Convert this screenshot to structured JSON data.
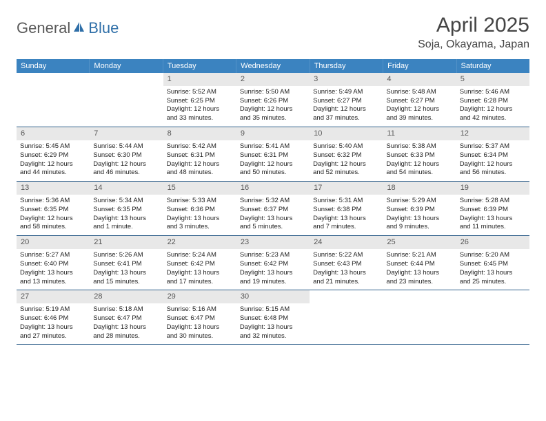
{
  "logo": {
    "general": "General",
    "blue": "Blue"
  },
  "title": "April 2025",
  "location": "Soja, Okayama, Japan",
  "colors": {
    "header_bg": "#3b83c0",
    "header_text": "#ffffff",
    "daynum_bg": "#e8e8e8",
    "row_border": "#2d5e8a",
    "logo_gray": "#5a5a5a",
    "logo_blue": "#2f6fa8"
  },
  "day_names": [
    "Sunday",
    "Monday",
    "Tuesday",
    "Wednesday",
    "Thursday",
    "Friday",
    "Saturday"
  ],
  "weeks": [
    [
      {
        "n": "",
        "empty": true
      },
      {
        "n": "",
        "empty": true
      },
      {
        "n": "1",
        "sr": "Sunrise: 5:52 AM",
        "ss": "Sunset: 6:25 PM",
        "dl1": "Daylight: 12 hours",
        "dl2": "and 33 minutes."
      },
      {
        "n": "2",
        "sr": "Sunrise: 5:50 AM",
        "ss": "Sunset: 6:26 PM",
        "dl1": "Daylight: 12 hours",
        "dl2": "and 35 minutes."
      },
      {
        "n": "3",
        "sr": "Sunrise: 5:49 AM",
        "ss": "Sunset: 6:27 PM",
        "dl1": "Daylight: 12 hours",
        "dl2": "and 37 minutes."
      },
      {
        "n": "4",
        "sr": "Sunrise: 5:48 AM",
        "ss": "Sunset: 6:27 PM",
        "dl1": "Daylight: 12 hours",
        "dl2": "and 39 minutes."
      },
      {
        "n": "5",
        "sr": "Sunrise: 5:46 AM",
        "ss": "Sunset: 6:28 PM",
        "dl1": "Daylight: 12 hours",
        "dl2": "and 42 minutes."
      }
    ],
    [
      {
        "n": "6",
        "sr": "Sunrise: 5:45 AM",
        "ss": "Sunset: 6:29 PM",
        "dl1": "Daylight: 12 hours",
        "dl2": "and 44 minutes."
      },
      {
        "n": "7",
        "sr": "Sunrise: 5:44 AM",
        "ss": "Sunset: 6:30 PM",
        "dl1": "Daylight: 12 hours",
        "dl2": "and 46 minutes."
      },
      {
        "n": "8",
        "sr": "Sunrise: 5:42 AM",
        "ss": "Sunset: 6:31 PM",
        "dl1": "Daylight: 12 hours",
        "dl2": "and 48 minutes."
      },
      {
        "n": "9",
        "sr": "Sunrise: 5:41 AM",
        "ss": "Sunset: 6:31 PM",
        "dl1": "Daylight: 12 hours",
        "dl2": "and 50 minutes."
      },
      {
        "n": "10",
        "sr": "Sunrise: 5:40 AM",
        "ss": "Sunset: 6:32 PM",
        "dl1": "Daylight: 12 hours",
        "dl2": "and 52 minutes."
      },
      {
        "n": "11",
        "sr": "Sunrise: 5:38 AM",
        "ss": "Sunset: 6:33 PM",
        "dl1": "Daylight: 12 hours",
        "dl2": "and 54 minutes."
      },
      {
        "n": "12",
        "sr": "Sunrise: 5:37 AM",
        "ss": "Sunset: 6:34 PM",
        "dl1": "Daylight: 12 hours",
        "dl2": "and 56 minutes."
      }
    ],
    [
      {
        "n": "13",
        "sr": "Sunrise: 5:36 AM",
        "ss": "Sunset: 6:35 PM",
        "dl1": "Daylight: 12 hours",
        "dl2": "and 58 minutes."
      },
      {
        "n": "14",
        "sr": "Sunrise: 5:34 AM",
        "ss": "Sunset: 6:35 PM",
        "dl1": "Daylight: 13 hours",
        "dl2": "and 1 minute."
      },
      {
        "n": "15",
        "sr": "Sunrise: 5:33 AM",
        "ss": "Sunset: 6:36 PM",
        "dl1": "Daylight: 13 hours",
        "dl2": "and 3 minutes."
      },
      {
        "n": "16",
        "sr": "Sunrise: 5:32 AM",
        "ss": "Sunset: 6:37 PM",
        "dl1": "Daylight: 13 hours",
        "dl2": "and 5 minutes."
      },
      {
        "n": "17",
        "sr": "Sunrise: 5:31 AM",
        "ss": "Sunset: 6:38 PM",
        "dl1": "Daylight: 13 hours",
        "dl2": "and 7 minutes."
      },
      {
        "n": "18",
        "sr": "Sunrise: 5:29 AM",
        "ss": "Sunset: 6:39 PM",
        "dl1": "Daylight: 13 hours",
        "dl2": "and 9 minutes."
      },
      {
        "n": "19",
        "sr": "Sunrise: 5:28 AM",
        "ss": "Sunset: 6:39 PM",
        "dl1": "Daylight: 13 hours",
        "dl2": "and 11 minutes."
      }
    ],
    [
      {
        "n": "20",
        "sr": "Sunrise: 5:27 AM",
        "ss": "Sunset: 6:40 PM",
        "dl1": "Daylight: 13 hours",
        "dl2": "and 13 minutes."
      },
      {
        "n": "21",
        "sr": "Sunrise: 5:26 AM",
        "ss": "Sunset: 6:41 PM",
        "dl1": "Daylight: 13 hours",
        "dl2": "and 15 minutes."
      },
      {
        "n": "22",
        "sr": "Sunrise: 5:24 AM",
        "ss": "Sunset: 6:42 PM",
        "dl1": "Daylight: 13 hours",
        "dl2": "and 17 minutes."
      },
      {
        "n": "23",
        "sr": "Sunrise: 5:23 AM",
        "ss": "Sunset: 6:42 PM",
        "dl1": "Daylight: 13 hours",
        "dl2": "and 19 minutes."
      },
      {
        "n": "24",
        "sr": "Sunrise: 5:22 AM",
        "ss": "Sunset: 6:43 PM",
        "dl1": "Daylight: 13 hours",
        "dl2": "and 21 minutes."
      },
      {
        "n": "25",
        "sr": "Sunrise: 5:21 AM",
        "ss": "Sunset: 6:44 PM",
        "dl1": "Daylight: 13 hours",
        "dl2": "and 23 minutes."
      },
      {
        "n": "26",
        "sr": "Sunrise: 5:20 AM",
        "ss": "Sunset: 6:45 PM",
        "dl1": "Daylight: 13 hours",
        "dl2": "and 25 minutes."
      }
    ],
    [
      {
        "n": "27",
        "sr": "Sunrise: 5:19 AM",
        "ss": "Sunset: 6:46 PM",
        "dl1": "Daylight: 13 hours",
        "dl2": "and 27 minutes."
      },
      {
        "n": "28",
        "sr": "Sunrise: 5:18 AM",
        "ss": "Sunset: 6:47 PM",
        "dl1": "Daylight: 13 hours",
        "dl2": "and 28 minutes."
      },
      {
        "n": "29",
        "sr": "Sunrise: 5:16 AM",
        "ss": "Sunset: 6:47 PM",
        "dl1": "Daylight: 13 hours",
        "dl2": "and 30 minutes."
      },
      {
        "n": "30",
        "sr": "Sunrise: 5:15 AM",
        "ss": "Sunset: 6:48 PM",
        "dl1": "Daylight: 13 hours",
        "dl2": "and 32 minutes."
      },
      {
        "n": "",
        "empty": true
      },
      {
        "n": "",
        "empty": true
      },
      {
        "n": "",
        "empty": true
      }
    ]
  ]
}
